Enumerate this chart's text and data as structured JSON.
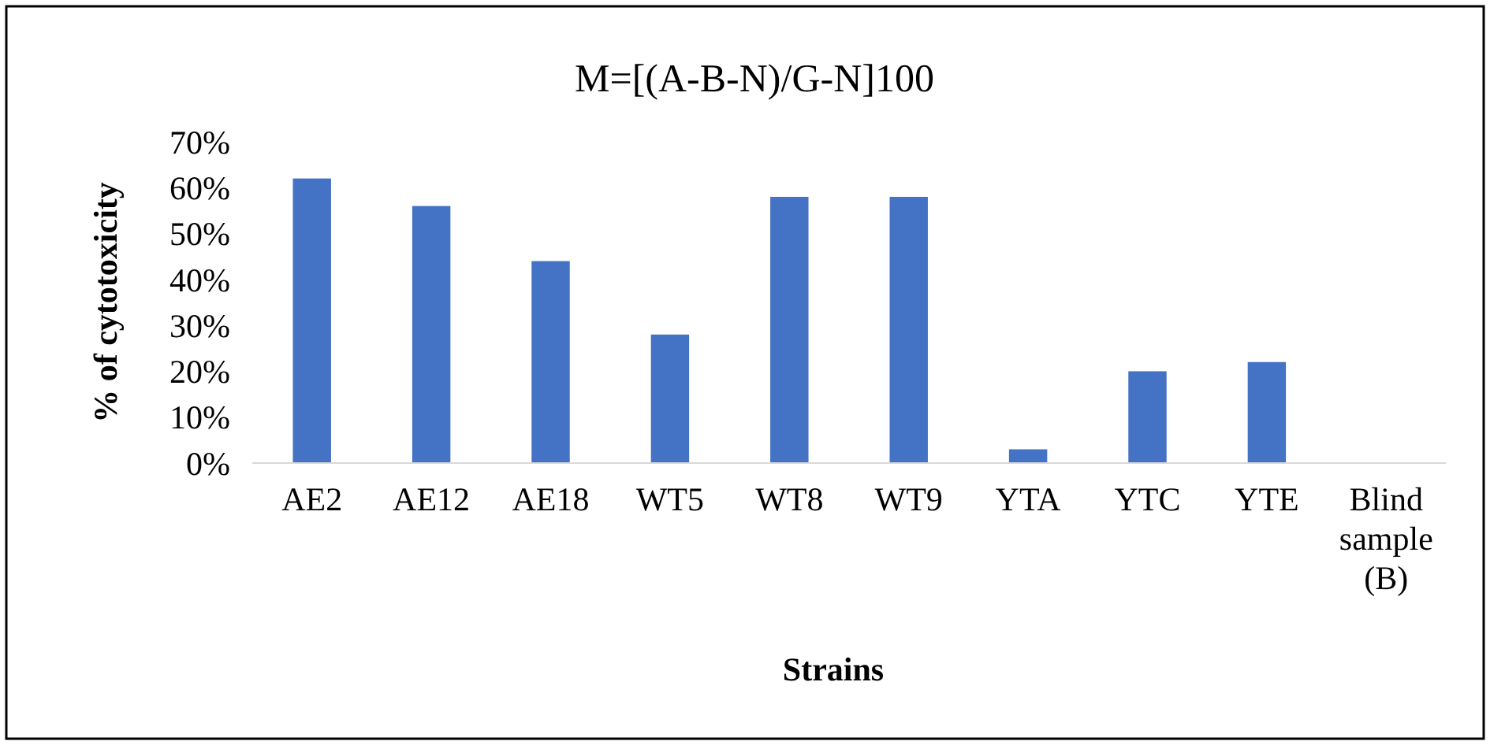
{
  "chart_data": {
    "type": "bar",
    "title": "M=[(A-B-N)/G-N]100",
    "xlabel": "Strains",
    "ylabel": "% of cytotoxicity",
    "categories": [
      "AE2",
      "AE12",
      "AE18",
      "WT5",
      "WT8",
      "WT9",
      "YTA",
      "YTC",
      "YTE",
      "Blind sample (B)"
    ],
    "values": [
      62,
      56,
      44,
      28,
      58,
      58,
      3,
      20,
      22,
      0
    ],
    "color": "#4472c4",
    "ylim": [
      0,
      70
    ],
    "yticks": [
      {
        "value": 0,
        "label": "0%"
      },
      {
        "value": 10,
        "label": "10%"
      },
      {
        "value": 20,
        "label": "20%"
      },
      {
        "value": 30,
        "label": "30%"
      },
      {
        "value": 40,
        "label": "40%"
      },
      {
        "value": 50,
        "label": "50%"
      },
      {
        "value": 60,
        "label": "60%"
      },
      {
        "value": 70,
        "label": "70%"
      }
    ],
    "grid": false
  }
}
